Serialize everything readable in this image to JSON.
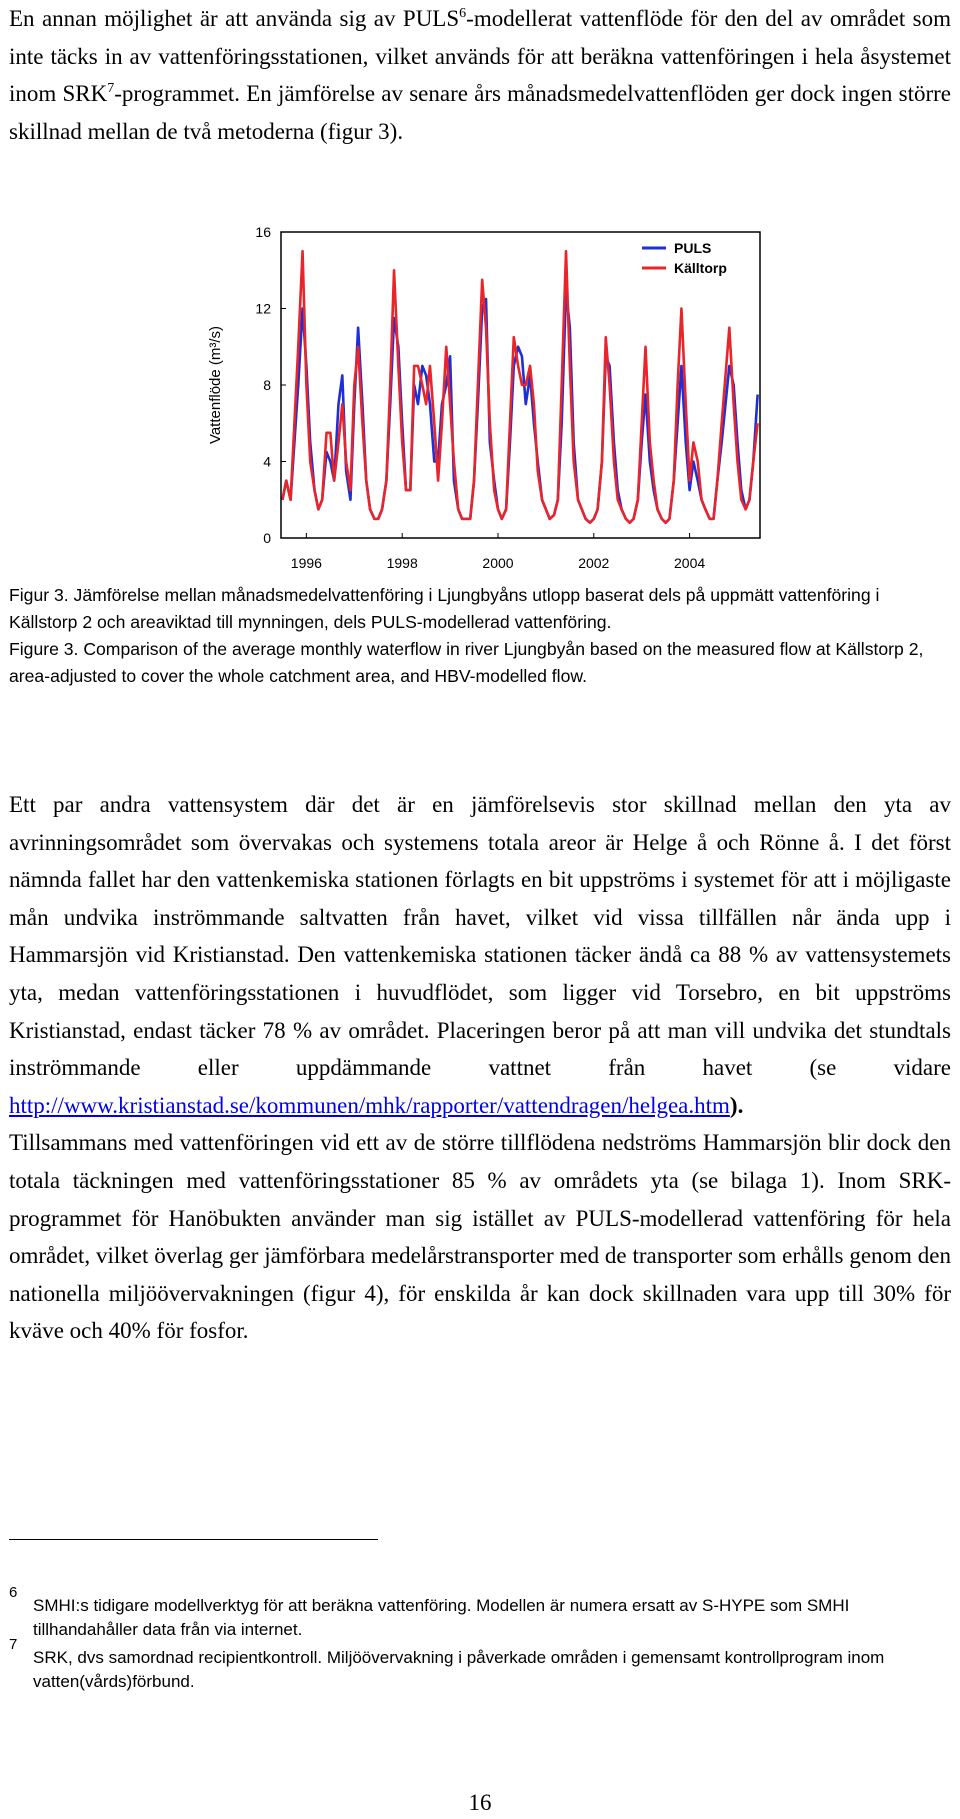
{
  "intro": [
    "En annan möjlighet är att använda sig av PULS",
    "6",
    "-modellerat vattenflöde för den del av området som inte täcks in av vattenföringsstationen, vilket används för att beräkna vattenföringen i hela åsystemet inom SRK",
    "7",
    "-programmet. En jämförelse av senare års månadsmedelvattenflöden ger dock ingen större skillnad mellan de två metoderna (figur 3)."
  ],
  "chart_data": {
    "type": "line",
    "ylabel": "Vattenflöde (m³/s)",
    "xlim": [
      1995.47,
      2005.47
    ],
    "xticks": [
      1996,
      1998,
      2000,
      2002,
      2004
    ],
    "ylim": [
      0,
      16
    ],
    "yticks": [
      0,
      4,
      8,
      12,
      16
    ],
    "grid": false,
    "legend": "upper right",
    "x": [
      1995.5,
      1995.58,
      1995.67,
      1995.75,
      1995.83,
      1995.92,
      1996.0,
      1996.08,
      1996.17,
      1996.25,
      1996.33,
      1996.42,
      1996.5,
      1996.58,
      1996.67,
      1996.75,
      1996.83,
      1996.92,
      1997.0,
      1997.08,
      1997.17,
      1997.25,
      1997.33,
      1997.42,
      1997.5,
      1997.58,
      1997.67,
      1997.75,
      1997.83,
      1997.92,
      1998.0,
      1998.08,
      1998.17,
      1998.25,
      1998.33,
      1998.42,
      1998.5,
      1998.58,
      1998.67,
      1998.75,
      1998.83,
      1998.92,
      1999.0,
      1999.08,
      1999.17,
      1999.25,
      1999.33,
      1999.42,
      1999.5,
      1999.58,
      1999.67,
      1999.75,
      1999.83,
      1999.92,
      2000.0,
      2000.08,
      2000.17,
      2000.25,
      2000.33,
      2000.42,
      2000.5,
      2000.58,
      2000.67,
      2000.75,
      2000.83,
      2000.92,
      2001.0,
      2001.08,
      2001.17,
      2001.25,
      2001.33,
      2001.42,
      2001.5,
      2001.58,
      2001.67,
      2001.75,
      2001.83,
      2001.92,
      2002.0,
      2002.08,
      2002.17,
      2002.25,
      2002.33,
      2002.42,
      2002.5,
      2002.58,
      2002.67,
      2002.75,
      2002.83,
      2002.92,
      2003.0,
      2003.08,
      2003.17,
      2003.25,
      2003.33,
      2003.42,
      2003.5,
      2003.58,
      2003.67,
      2003.75,
      2003.83,
      2003.92,
      2004.0,
      2004.08,
      2004.17,
      2004.25,
      2004.33,
      2004.42,
      2004.5,
      2004.58,
      2004.67,
      2004.75,
      2004.83,
      2004.92,
      2005.0,
      2005.08,
      2005.17,
      2005.25,
      2005.33,
      2005.42
    ],
    "series": [
      {
        "name": "PULS",
        "color": "#1f2fd6",
        "values": [
          2,
          3,
          2,
          5,
          8,
          12,
          9,
          5,
          2.5,
          1.5,
          2,
          4.5,
          4,
          3,
          7,
          8.5,
          3.5,
          2,
          7,
          11,
          7,
          3,
          1.5,
          1,
          1,
          1.5,
          3,
          7,
          11.5,
          10,
          6,
          2.5,
          2.5,
          8,
          7,
          9,
          8.5,
          7,
          4,
          4,
          7,
          8,
          9.5,
          3,
          1.5,
          1,
          1,
          1,
          3,
          7,
          12,
          12.5,
          5,
          3,
          1.5,
          1,
          1.5,
          5,
          9,
          10,
          9.5,
          7,
          8.5,
          6,
          4,
          2,
          1.5,
          1,
          1.2,
          2,
          6,
          13,
          11,
          5,
          2,
          1.5,
          1,
          0.8,
          1,
          1.5,
          4,
          9.5,
          9,
          5,
          2.5,
          1.5,
          1,
          0.8,
          1,
          2,
          5,
          7.5,
          4,
          2.5,
          1.5,
          1,
          0.8,
          1,
          3,
          6,
          9,
          5,
          2.5,
          4,
          3,
          2,
          1.5,
          1,
          1,
          3,
          5,
          7,
          9,
          8,
          5,
          2.5,
          1.5,
          2,
          4,
          7.5
        ]
      },
      {
        "name": "Källtorp",
        "color": "#e8262a",
        "values": [
          2,
          3,
          2,
          6,
          10,
          15,
          8,
          4,
          2.5,
          1.5,
          2,
          5.5,
          5.5,
          3,
          5,
          7,
          4,
          2.5,
          8,
          10,
          6,
          3,
          1.5,
          1,
          1,
          1.5,
          3,
          8,
          14,
          9,
          5,
          2.5,
          2.5,
          9,
          9,
          8,
          7,
          9,
          6,
          3,
          6,
          10,
          7,
          4,
          1.5,
          1,
          1,
          1,
          3,
          8,
          13.5,
          11,
          6,
          2.5,
          1.5,
          1,
          1.5,
          6,
          10.5,
          9,
          8,
          8,
          9,
          7,
          3.5,
          2,
          1.5,
          1,
          1.2,
          2,
          8,
          15,
          9,
          4,
          2,
          1.5,
          1,
          0.8,
          1,
          1.5,
          4,
          10.5,
          8,
          4,
          2,
          1.5,
          1,
          0.8,
          1,
          2,
          6,
          10,
          5,
          3,
          1.5,
          1,
          0.8,
          1,
          3,
          8,
          12,
          7,
          3,
          5,
          4,
          2,
          1.5,
          1,
          1,
          3,
          6,
          8.5,
          11,
          7,
          4,
          2,
          1.5,
          2,
          4,
          6
        ]
      }
    ]
  },
  "captions": [
    "Figur 3. Jämförelse mellan månadsmedelvattenföring i Ljungbyåns utlopp baserat dels på uppmätt vattenföring i Källstorp 2 och areaviktad till mynningen, dels PULS-modellerad vattenföring.",
    "Figure 3. Comparison of the average monthly waterflow in river Ljungbyån based on the measured flow at Källstorp 2, area-adjusted to cover the whole catchment area, and HBV-modelled flow."
  ],
  "body": {
    "before_link": "Ett par andra vattensystem där det är en jämförelsevis stor skillnad mellan den yta av avrinningsområdet som övervakas och systemens totala areor är Helge å och Rönne å. I det först nämnda fallet har den vattenkemiska stationen förlagts en bit uppströms i systemet för att i möjligaste mån undvika inströmmande saltvatten från havet, vilket vid vissa tillfällen når ända upp i Hammarsjön vid Kristianstad. Den vattenkemiska stationen täcker ändå ca 88 % av vattensystemets yta, medan vattenföringsstationen i huvudflödet, som ligger vid Torsebro, en bit uppströms Kristianstad, endast täcker 78 % av området. Placeringen beror på att man vill undvika det stundtals inströmmande eller uppdämmande vattnet från havet (se vidare",
    "link": "http://www.kristianstad.se/kommunen/mhk/rapporter/vattendragen/helgea.htm",
    "after_link": ").",
    "continuation": "Tillsammans med vattenföringen vid ett av de större tillflödena nedströms Hammarsjön blir dock den totala täckningen med vattenföringsstationer 85 % av områdets yta (se bilaga 1). Inom SRK-programmet för Hanöbukten använder man sig istället av PULS-modellerad vattenföring för hela området, vilket överlag ger jämförbara medelårstransporter med de transporter som erhålls genom den nationella miljöövervakningen (figur 4), för enskilda år kan dock skillnaden vara upp till 30% för kväve och 40% för fosfor."
  },
  "footnotes": [
    {
      "number": "6",
      "text": "SMHI:s tidigare modellverktyg för att beräkna vattenföring. Modellen är numera ersatt av S-HYPE som SMHI tillhandahåller data från via internet."
    },
    {
      "number": "7",
      "text": "SRK, dvs samordnad recipientkontroll. Miljöövervakning i påverkade områden i gemensamt kontrollprogram inom vatten(vårds)förbund."
    }
  ],
  "page_number": "16"
}
